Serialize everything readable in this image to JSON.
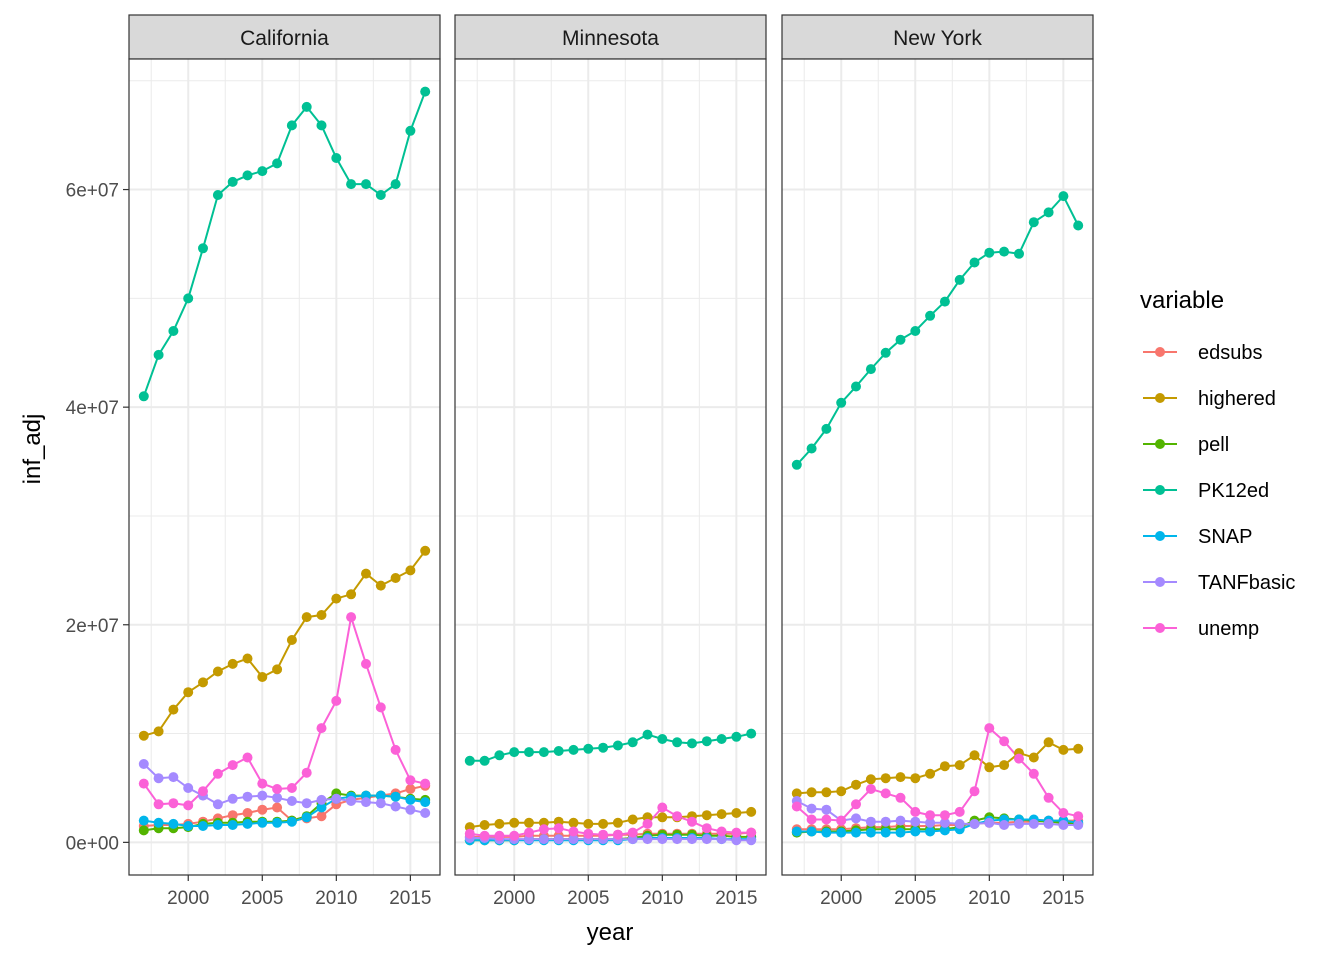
{
  "chart_data": {
    "type": "line",
    "facet_by": "state",
    "facets": [
      "California",
      "Minnesota",
      "New York"
    ],
    "xlabel": "year",
    "ylabel": "inf_adj",
    "xlim": [
      1996,
      2017
    ],
    "ylim": [
      -3000000,
      72000000
    ],
    "x_ticks": [
      2000,
      2005,
      2010,
      2015
    ],
    "x_tick_labels": [
      "2000",
      "2005",
      "2010",
      "2015"
    ],
    "y_ticks": [
      0,
      20000000,
      40000000,
      60000000
    ],
    "y_tick_labels": [
      "0e+00",
      "2e+07",
      "4e+07",
      "6e+07"
    ],
    "grid": true,
    "legend": {
      "title": "variable",
      "position": "right",
      "entries": [
        "edsubs",
        "highered",
        "pell",
        "PK12ed",
        "SNAP",
        "TANFbasic",
        "unemp"
      ]
    },
    "colors": {
      "edsubs": "#F8766D",
      "highered": "#C49A00",
      "pell": "#53B400",
      "PK12ed": "#00C094",
      "SNAP": "#00B6EB",
      "TANFbasic": "#A58AFF",
      "unemp": "#FB61D7"
    },
    "years": [
      1997,
      1998,
      1999,
      2000,
      2001,
      2002,
      2003,
      2004,
      2005,
      2006,
      2007,
      2008,
      2009,
      2010,
      2011,
      2012,
      2013,
      2014,
      2015,
      2016
    ],
    "panels": [
      {
        "state": "California",
        "series": [
          {
            "name": "edsubs",
            "values": [
              1500000,
              1600000,
              1600000,
              1700000,
              1900000,
              2200000,
              2500000,
              2700000,
              3000000,
              3200000,
              2000000,
              2200000,
              2400000,
              3500000,
              3900000,
              4100000,
              4300000,
              4500000,
              4900000,
              5200000
            ]
          },
          {
            "name": "highered",
            "values": [
              9800000,
              10200000,
              12200000,
              13800000,
              14700000,
              15700000,
              16400000,
              16900000,
              15200000,
              15900000,
              18600000,
              20700000,
              20900000,
              22400000,
              22800000,
              24700000,
              23600000,
              24300000,
              25000000,
              26800000
            ]
          },
          {
            "name": "pell",
            "values": [
              1100000,
              1300000,
              1300000,
              1400000,
              1700000,
              1800000,
              1800000,
              1900000,
              1900000,
              1900000,
              2000000,
              2400000,
              3600000,
              4500000,
              4300000,
              4300000,
              4300000,
              4200000,
              4000000,
              3900000
            ]
          },
          {
            "name": "PK12ed",
            "values": [
              41000000,
              44800000,
              47000000,
              50000000,
              54600000,
              59500000,
              60700000,
              61300000,
              61700000,
              62400000,
              65900000,
              67600000,
              65900000,
              62900000,
              60500000,
              60500000,
              59500000,
              60500000,
              65400000,
              69000000
            ]
          },
          {
            "name": "SNAP",
            "values": [
              2000000,
              1800000,
              1700000,
              1500000,
              1500000,
              1600000,
              1600000,
              1700000,
              1800000,
              1800000,
              1900000,
              2300000,
              3200000,
              4000000,
              4200000,
              4300000,
              4300000,
              4200000,
              3900000,
              3700000
            ]
          },
          {
            "name": "TANFbasic",
            "values": [
              7200000,
              5900000,
              6000000,
              5000000,
              4300000,
              3500000,
              4000000,
              4200000,
              4300000,
              4100000,
              3800000,
              3600000,
              3900000,
              4000000,
              3800000,
              3700000,
              3600000,
              3300000,
              3000000,
              2700000
            ]
          },
          {
            "name": "unemp",
            "values": [
              5400000,
              3500000,
              3600000,
              3400000,
              4700000,
              6300000,
              7100000,
              7800000,
              5400000,
              4900000,
              5000000,
              6400000,
              10500000,
              13000000,
              20700000,
              16400000,
              12400000,
              8500000,
              5700000,
              5400000
            ]
          }
        ]
      },
      {
        "state": "Minnesota",
        "series": [
          {
            "name": "edsubs",
            "values": [
              500000,
              500000,
              500000,
              500000,
              600000,
              600000,
              600000,
              600000,
              600000,
              600000,
              700000,
              700000,
              800000,
              800000,
              800000,
              800000,
              800000,
              800000,
              800000,
              900000
            ]
          },
          {
            "name": "highered",
            "values": [
              1400000,
              1600000,
              1700000,
              1800000,
              1800000,
              1800000,
              1900000,
              1800000,
              1700000,
              1700000,
              1800000,
              2100000,
              2300000,
              2300000,
              2300000,
              2400000,
              2500000,
              2600000,
              2700000,
              2800000
            ]
          },
          {
            "name": "pell",
            "values": [
              200000,
              200000,
              200000,
              200000,
              300000,
              300000,
              300000,
              300000,
              300000,
              300000,
              300000,
              400000,
              600000,
              700000,
              700000,
              700000,
              600000,
              600000,
              500000,
              500000
            ]
          },
          {
            "name": "PK12ed",
            "values": [
              7500000,
              7500000,
              8000000,
              8300000,
              8300000,
              8300000,
              8400000,
              8500000,
              8600000,
              8700000,
              8900000,
              9200000,
              9900000,
              9500000,
              9200000,
              9100000,
              9300000,
              9500000,
              9700000,
              10000000
            ]
          },
          {
            "name": "SNAP",
            "values": [
              200000,
              200000,
              200000,
              200000,
              200000,
              200000,
              200000,
              200000,
              200000,
              200000,
              200000,
              300000,
              400000,
              400000,
              400000,
              400000,
              400000,
              300000,
              300000,
              300000
            ]
          },
          {
            "name": "TANFbasic",
            "values": [
              400000,
              400000,
              300000,
              300000,
              300000,
              300000,
              300000,
              300000,
              300000,
              300000,
              300000,
              300000,
              300000,
              300000,
              300000,
              300000,
              300000,
              300000,
              200000,
              200000
            ]
          },
          {
            "name": "unemp",
            "values": [
              800000,
              600000,
              600000,
              600000,
              900000,
              1200000,
              1300000,
              1000000,
              800000,
              700000,
              700000,
              900000,
              1700000,
              3200000,
              2400000,
              1900000,
              1300000,
              1000000,
              900000,
              900000
            ]
          }
        ]
      },
      {
        "state": "New York",
        "series": [
          {
            "name": "edsubs",
            "values": [
              1200000,
              1200000,
              1200000,
              1200000,
              1300000,
              1400000,
              1400000,
              1500000,
              1500000,
              1500000,
              1600000,
              1600000,
              1700000,
              1800000,
              1800000,
              1900000,
              1900000,
              2000000,
              2000000,
              2000000
            ]
          },
          {
            "name": "highered",
            "values": [
              4500000,
              4600000,
              4600000,
              4700000,
              5300000,
              5800000,
              5900000,
              6000000,
              5900000,
              6300000,
              7000000,
              7100000,
              8000000,
              6900000,
              7100000,
              8200000,
              7800000,
              9200000,
              8500000,
              8600000
            ]
          },
          {
            "name": "pell",
            "values": [
              900000,
              1000000,
              1000000,
              1000000,
              1100000,
              1200000,
              1200000,
              1200000,
              1200000,
              1200000,
              1200000,
              1400000,
              2000000,
              2300000,
              2200000,
              2100000,
              2000000,
              1900000,
              1800000,
              1700000
            ]
          },
          {
            "name": "PK12ed",
            "values": [
              34700000,
              36200000,
              38000000,
              40400000,
              41900000,
              43500000,
              45000000,
              46200000,
              47000000,
              48400000,
              49700000,
              51700000,
              53300000,
              54200000,
              54300000,
              54100000,
              57000000,
              57900000,
              59400000,
              56700000
            ]
          },
          {
            "name": "SNAP",
            "values": [
              1000000,
              1000000,
              900000,
              900000,
              900000,
              900000,
              900000,
              900000,
              1000000,
              1000000,
              1100000,
              1200000,
              1700000,
              2000000,
              2100000,
              2100000,
              2100000,
              2000000,
              2000000,
              1800000
            ]
          },
          {
            "name": "TANFbasic",
            "values": [
              3800000,
              3100000,
              3000000,
              2000000,
              2200000,
              1900000,
              1900000,
              2000000,
              1900000,
              1800000,
              1800000,
              1700000,
              1700000,
              1800000,
              1600000,
              1700000,
              1700000,
              1700000,
              1600000,
              1600000
            ]
          },
          {
            "name": "unemp",
            "values": [
              3300000,
              2100000,
              2100000,
              2000000,
              3500000,
              4900000,
              4500000,
              4100000,
              2800000,
              2500000,
              2500000,
              2800000,
              4700000,
              10500000,
              9300000,
              7700000,
              6300000,
              4100000,
              2700000,
              2400000
            ]
          }
        ]
      }
    ]
  }
}
